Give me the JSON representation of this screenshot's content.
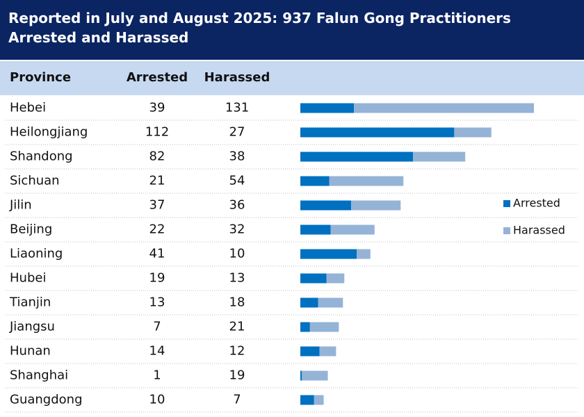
{
  "chart_data": {
    "type": "bar",
    "stacked": true,
    "orientation": "horizontal",
    "title": "Reported in July and August 2025: 937 Falun Gong Practitioners Arrested and Harassed",
    "category_label": "Province",
    "categories": [
      "Hebei",
      "Heilongjiang",
      "Shandong",
      "Sichuan",
      "Jilin",
      "Beijing",
      "Liaoning",
      "Hubei",
      "Tianjin",
      "Jiangsu",
      "Hunan",
      "Shanghai",
      "Guangdong"
    ],
    "series": [
      {
        "name": "Arrested",
        "color": "#0070c0",
        "values": [
          39,
          112,
          82,
          21,
          37,
          22,
          41,
          19,
          13,
          7,
          14,
          1,
          10
        ]
      },
      {
        "name": "Harassed",
        "color": "#95b3d7",
        "values": [
          131,
          27,
          38,
          54,
          36,
          32,
          10,
          13,
          18,
          21,
          12,
          19,
          7
        ]
      }
    ],
    "legend": "right"
  }
}
